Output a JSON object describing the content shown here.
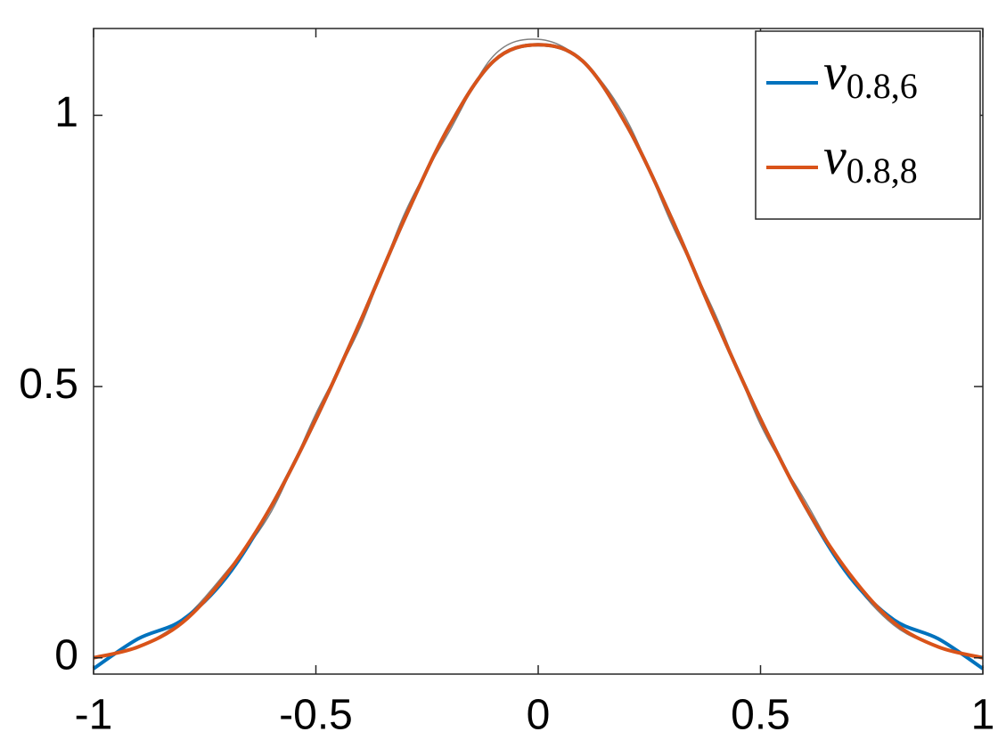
{
  "chart_data": {
    "type": "line",
    "x": [
      -1,
      -0.9,
      -0.8,
      -0.7,
      -0.6,
      -0.5,
      -0.4,
      -0.3,
      -0.2,
      -0.1,
      0,
      0.1,
      0.2,
      0.3,
      0.4,
      0.5,
      0.6,
      0.7,
      0.8,
      0.9,
      1
    ],
    "series": [
      {
        "color": "#808080",
        "values": [
          0,
          0.02,
          0.07,
          0.16,
          0.27,
          0.45,
          0.61,
          0.82,
          0.97,
          1.11,
          1.14,
          1.1,
          0.99,
          0.8,
          0.63,
          0.43,
          0.29,
          0.15,
          0.06,
          0.02,
          0
        ]
      },
      {
        "name": "v0.8,6",
        "color": "#0072bd",
        "values": [
          -0.02,
          0.035,
          0.07,
          0.15,
          0.28,
          0.44,
          0.62,
          0.81,
          0.98,
          1.1,
          1.13,
          1.1,
          0.98,
          0.81,
          0.62,
          0.44,
          0.28,
          0.15,
          0.07,
          0.035,
          -0.02
        ]
      },
      {
        "name": "v0.8,8",
        "color": "#d95319",
        "values": [
          0,
          0.02,
          0.065,
          0.155,
          0.28,
          0.44,
          0.62,
          0.81,
          0.98,
          1.1,
          1.13,
          1.1,
          0.98,
          0.81,
          0.62,
          0.44,
          0.28,
          0.155,
          0.065,
          0.02,
          0
        ]
      }
    ],
    "xlim": [
      -1,
      1
    ],
    "xticks": [
      -1,
      -0.5,
      0,
      0.5,
      1
    ],
    "ylim": [
      -0.03,
      1.16
    ],
    "yticks": [
      0,
      0.5,
      1
    ],
    "grid": false,
    "legend": "top-right"
  }
}
